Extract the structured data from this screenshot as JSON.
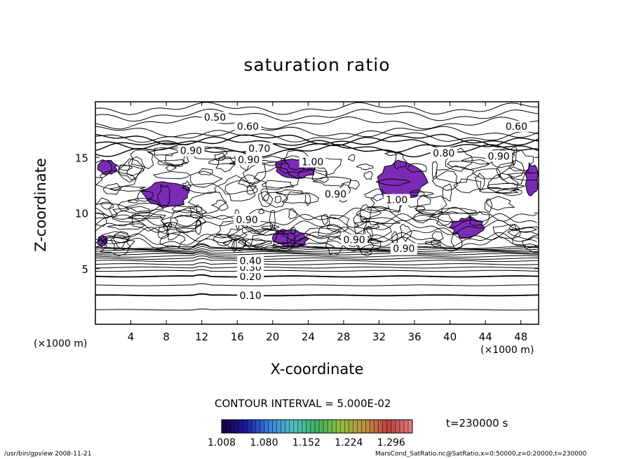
{
  "chart_data": {
    "type": "heatmap",
    "title": "saturation ratio",
    "xlabel": "X-coordinate",
    "ylabel": "Z-coordinate",
    "x_unit_label": "(×1000 m)",
    "x_unit_label_2": "(×1000 m)",
    "xlim": [
      0,
      50
    ],
    "ylim": [
      0,
      20
    ],
    "x_ticks": [
      4,
      8,
      12,
      16,
      20,
      24,
      28,
      32,
      36,
      40,
      44,
      48
    ],
    "y_ticks": [
      5,
      10,
      15
    ],
    "contour_interval_text": "CONTOUR INTERVAL = 5.000E-02",
    "contour_labels": [
      {
        "text": "0.10",
        "x": 17.5,
        "z": 2.6
      },
      {
        "text": "0.20",
        "x": 17.5,
        "z": 4.3
      },
      {
        "text": "0.30",
        "x": 17.5,
        "z": 5.1
      },
      {
        "text": "0.40",
        "x": 17.5,
        "z": 5.7
      },
      {
        "text": "0.50",
        "x": 13.5,
        "z": 18.6
      },
      {
        "text": "0.60",
        "x": 17.2,
        "z": 17.8
      },
      {
        "text": "0.60",
        "x": 47.5,
        "z": 17.8
      },
      {
        "text": "0.70",
        "x": 18.5,
        "z": 15.8
      },
      {
        "text": "0.80",
        "x": 39.3,
        "z": 15.4
      },
      {
        "text": "0.90",
        "x": 10.8,
        "z": 15.6
      },
      {
        "text": "0.90",
        "x": 17.3,
        "z": 14.8
      },
      {
        "text": "0.90",
        "x": 27.1,
        "z": 11.7
      },
      {
        "text": "0.90",
        "x": 17.1,
        "z": 9.4
      },
      {
        "text": "0.90",
        "x": 29.2,
        "z": 7.6
      },
      {
        "text": "0.90",
        "x": 34.8,
        "z": 6.8
      },
      {
        "text": "0.90",
        "x": 45.5,
        "z": 15.1
      },
      {
        "text": "1.00",
        "x": 24.5,
        "z": 14.6
      },
      {
        "text": "1.00",
        "x": 34.0,
        "z": 11.2
      }
    ],
    "supersaturated_regions": [
      {
        "x": [
          0.2,
          2.5
        ],
        "z": [
          13.4,
          14.8
        ]
      },
      {
        "x": [
          5.0,
          11.0
        ],
        "z": [
          10.5,
          12.8
        ]
      },
      {
        "x": [
          20.0,
          25.0
        ],
        "z": [
          13.0,
          15.0
        ]
      },
      {
        "x": [
          31.5,
          37.5
        ],
        "z": [
          10.8,
          14.7
        ]
      },
      {
        "x": [
          20.0,
          24.0
        ],
        "z": [
          6.8,
          8.6
        ]
      },
      {
        "x": [
          40.0,
          44.0
        ],
        "z": [
          7.7,
          9.7
        ]
      },
      {
        "x": [
          48.5,
          50.0
        ],
        "z": [
          11.5,
          14.6
        ]
      },
      {
        "x": [
          0.2,
          1.4
        ],
        "z": [
          7.0,
          8.0
        ]
      }
    ],
    "colorbar": {
      "ticks": [
        "1.008",
        "1.080",
        "1.152",
        "1.224",
        "1.296"
      ],
      "range": [
        1.008,
        1.332
      ],
      "colors": [
        "#1a0040",
        "#1a1aa0",
        "#3a80e0",
        "#50c0c0",
        "#40b060",
        "#90c040",
        "#c09040",
        "#c04040",
        "#e08080"
      ]
    },
    "fill_color": "#7b2bb5",
    "time_text": "t=230000 s"
  },
  "footer": {
    "left": "/usr/bin/gpview   2008-11-21",
    "right": "MarsCond_SatRatio.nc@SatRatio,x=0:50000,z=0:20000,t=230000"
  }
}
